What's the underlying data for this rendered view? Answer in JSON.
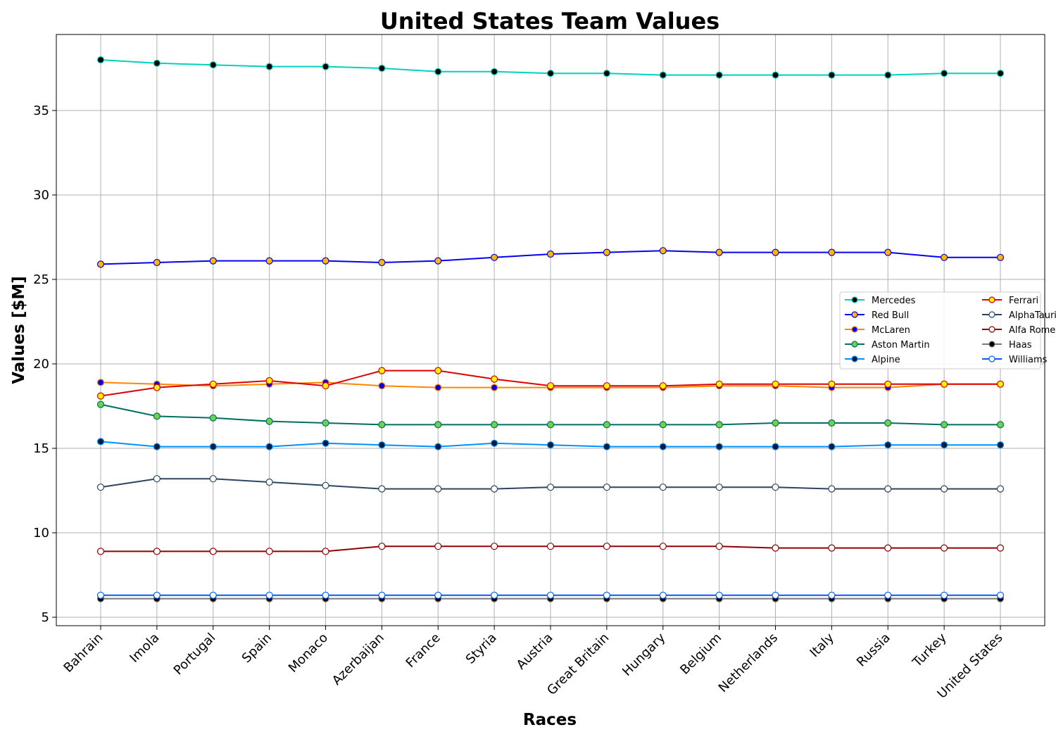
{
  "chart_data": {
    "type": "line",
    "title": "United States Team Values",
    "xlabel": "Races",
    "ylabel": "Values [$M]",
    "categories": [
      "Bahrain",
      "Imola",
      "Portugal",
      "Spain",
      "Monaco",
      "Azerbaijan",
      "France",
      "Styria",
      "Austria",
      "Great Britain",
      "Hungary",
      "Belgium",
      "Netherlands",
      "Italy",
      "Russia",
      "Turkey",
      "United States"
    ],
    "ylim": [
      4.5,
      39.5
    ],
    "yticks": [
      5,
      10,
      15,
      20,
      25,
      30,
      35
    ],
    "grid": true,
    "legend_position": "center-right",
    "series": [
      {
        "name": "Mercedes",
        "line_color": "#00d2be",
        "marker_color": "#000000",
        "marker_edge": "#00d2be",
        "values": [
          38.0,
          37.8,
          37.7,
          37.6,
          37.6,
          37.5,
          37.3,
          37.3,
          37.2,
          37.2,
          37.1,
          37.1,
          37.1,
          37.1,
          37.1,
          37.2,
          37.2
        ]
      },
      {
        "name": "Red Bull",
        "line_color": "#0600ef",
        "marker_color": "#ffb800",
        "marker_edge": "#0600ef",
        "values": [
          25.9,
          26.0,
          26.1,
          26.1,
          26.1,
          26.0,
          26.1,
          26.3,
          26.5,
          26.6,
          26.7,
          26.6,
          26.6,
          26.6,
          26.6,
          26.3,
          26.3
        ]
      },
      {
        "name": "McLaren",
        "line_color": "#ff8700",
        "marker_color": "#0600ef",
        "marker_edge": "#ff8700",
        "values": [
          18.9,
          18.8,
          18.7,
          18.8,
          18.9,
          18.7,
          18.6,
          18.6,
          18.6,
          18.6,
          18.6,
          18.7,
          18.7,
          18.6,
          18.6,
          18.8,
          18.8
        ]
      },
      {
        "name": "Aston Martin",
        "line_color": "#006f62",
        "marker_color": "#6cd34f",
        "marker_edge": "#006f62",
        "values": [
          17.6,
          16.9,
          16.8,
          16.6,
          16.5,
          16.4,
          16.4,
          16.4,
          16.4,
          16.4,
          16.4,
          16.4,
          16.5,
          16.5,
          16.5,
          16.4,
          16.4
        ]
      },
      {
        "name": "Alpine",
        "line_color": "#0090ff",
        "marker_color": "#001b3f",
        "marker_edge": "#0090ff",
        "values": [
          15.4,
          15.1,
          15.1,
          15.1,
          15.3,
          15.2,
          15.1,
          15.3,
          15.2,
          15.1,
          15.1,
          15.1,
          15.1,
          15.1,
          15.2,
          15.2,
          15.2
        ]
      },
      {
        "name": "Ferrari",
        "line_color": "#dc0000",
        "marker_color": "#fff200",
        "marker_edge": "#dc0000",
        "values": [
          18.1,
          18.6,
          18.8,
          19.0,
          18.7,
          19.6,
          19.6,
          19.1,
          18.7,
          18.7,
          18.7,
          18.8,
          18.8,
          18.8,
          18.8,
          18.8,
          18.8
        ]
      },
      {
        "name": "AlphaTauri",
        "line_color": "#2b4562",
        "marker_color": "#ffffff",
        "marker_edge": "#2b4562",
        "values": [
          12.7,
          13.2,
          13.2,
          13.0,
          12.8,
          12.6,
          12.6,
          12.6,
          12.7,
          12.7,
          12.7,
          12.7,
          12.7,
          12.6,
          12.6,
          12.6,
          12.6
        ]
      },
      {
        "name": "Alfa Romeo",
        "line_color": "#900000",
        "marker_color": "#ffffff",
        "marker_edge": "#900000",
        "values": [
          8.9,
          8.9,
          8.9,
          8.9,
          8.9,
          9.2,
          9.2,
          9.2,
          9.2,
          9.2,
          9.2,
          9.2,
          9.1,
          9.1,
          9.1,
          9.1,
          9.1
        ]
      },
      {
        "name": "Haas",
        "line_color": "#787878",
        "marker_color": "#000000",
        "marker_edge": "#787878",
        "values": [
          6.1,
          6.1,
          6.1,
          6.1,
          6.1,
          6.1,
          6.1,
          6.1,
          6.1,
          6.1,
          6.1,
          6.1,
          6.1,
          6.1,
          6.1,
          6.1,
          6.1
        ]
      },
      {
        "name": "Williams",
        "line_color": "#005aff",
        "marker_color": "#ffffff",
        "marker_edge": "#005aff",
        "values": [
          6.3,
          6.3,
          6.3,
          6.3,
          6.3,
          6.3,
          6.3,
          6.3,
          6.3,
          6.3,
          6.3,
          6.3,
          6.3,
          6.3,
          6.3,
          6.3,
          6.3
        ]
      }
    ]
  }
}
